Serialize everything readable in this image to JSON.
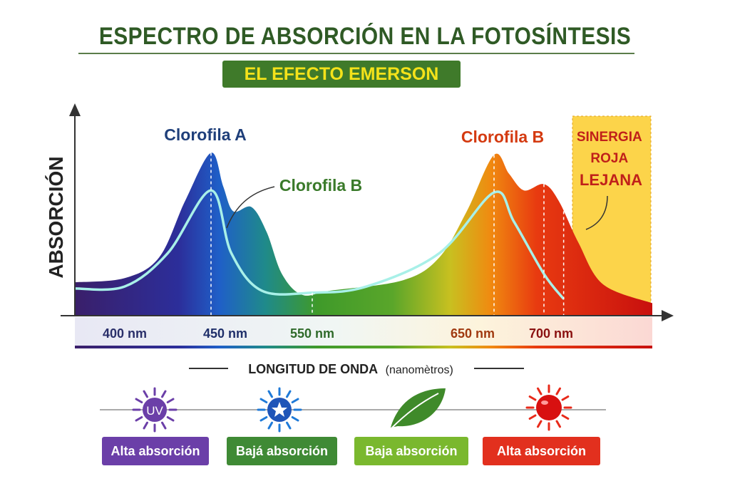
{
  "title": "ESPECTRO DE ABSORCIÓN EN LA FOTOSÍNTESIS",
  "subtitle": "EL EFECTO EMERSON",
  "chart_data": {
    "type": "area",
    "ylabel": "ABSORCIÓN",
    "xlabel": "LONGITUD DE ONDA",
    "xlabel_unit": "(nanomètros)",
    "x_ticks": [
      {
        "value": 400,
        "label": "400 nm"
      },
      {
        "value": 450,
        "label": "450 nm"
      },
      {
        "value": 550,
        "label": "550 nm"
      },
      {
        "value": 650,
        "label": "650 nm"
      },
      {
        "value": 700,
        "label": "700 nm"
      }
    ],
    "xlim": [
      370,
      810
    ],
    "ylim": [
      0,
      1
    ],
    "grid": false,
    "series": [
      {
        "style": "filled-spectrum",
        "x": [
          370,
          400,
          420,
          435,
          450,
          462,
          472,
          490,
          505,
          520,
          540,
          560,
          600,
          620,
          635,
          650,
          665,
          680,
          700,
          715,
          735,
          760,
          810
        ],
        "y": [
          0.16,
          0.18,
          0.28,
          0.55,
          0.78,
          0.62,
          0.5,
          0.52,
          0.4,
          0.2,
          0.1,
          0.12,
          0.17,
          0.28,
          0.5,
          0.77,
          0.68,
          0.6,
          0.63,
          0.55,
          0.35,
          0.15,
          0.06
        ]
      },
      {
        "style": "line",
        "color": "#a8f0e8",
        "x": [
          370,
          400,
          425,
          450,
          470,
          500,
          550,
          580,
          620,
          650,
          670,
          700,
          720
        ],
        "y": [
          0.13,
          0.14,
          0.3,
          0.6,
          0.3,
          0.12,
          0.11,
          0.14,
          0.3,
          0.59,
          0.45,
          0.2,
          0.08
        ]
      }
    ],
    "dashed_markers": [
      450,
      550,
      650,
      700,
      720
    ],
    "annotations": [
      {
        "text": "Clorofila A",
        "color": "#1f3f7a",
        "x": 450
      },
      {
        "text": "Clorofila B",
        "color": "#3a7a2a",
        "x": 490
      },
      {
        "text": "Clorofila B",
        "color": "#d43a10",
        "x": 650
      },
      {
        "text": "SINERGIA ROJA LEJANA",
        "lines": [
          "SINERGIA",
          "ROJA",
          "LEJANA"
        ],
        "color": "#c0201a",
        "region": [
          720,
          810
        ]
      }
    ]
  },
  "legend": [
    {
      "icon": "uv-sun-icon",
      "icon_text": "UV",
      "label": "Alta absorción",
      "color": "#6b3fa8"
    },
    {
      "icon": "blue-star-sun-icon",
      "label": "Bajá absorción",
      "color": "#3f8a35"
    },
    {
      "icon": "leaf-icon",
      "label": "Baja absorción",
      "color": "#7ab82e"
    },
    {
      "icon": "red-sun-icon",
      "label": "Alta absorción",
      "color": "#e2301e"
    }
  ]
}
